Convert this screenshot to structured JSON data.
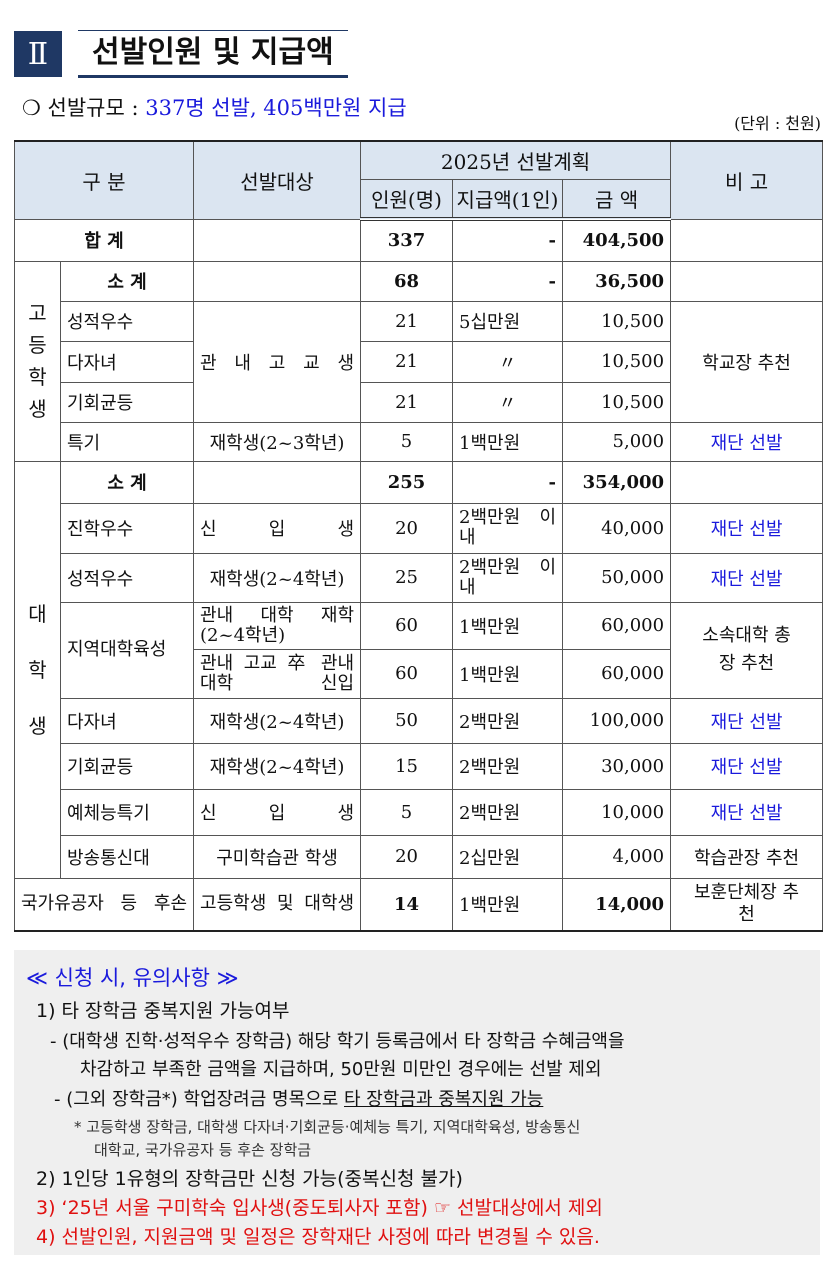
{
  "section": {
    "number": "Ⅱ",
    "title": "선발인원 및 지급액"
  },
  "scale": {
    "bullet": "❍",
    "label": "선발규모 :",
    "value": "337명 선발, 405백만원 지급"
  },
  "unit": "(단위 : 천원)",
  "table": {
    "headers": {
      "category": "구 분",
      "target": "선발대상",
      "plan": "2025년 선발계획",
      "count": "인원(명)",
      "per": "지급액(1인)",
      "amount": "금 액",
      "note": "비 고"
    },
    "total": {
      "label": "합 계",
      "count": "337",
      "per": "-",
      "amount": "404,500"
    },
    "high": {
      "group": "고등학생",
      "subtotal": {
        "label": "소 계",
        "count": "68",
        "per": "-",
        "amount": "36,500"
      },
      "target_shared": "관 내 고 교 생",
      "note_shared": "학교장 추천",
      "rows": [
        {
          "type": "성적우수",
          "count": "21",
          "per": "5십만원",
          "amount": "10,500"
        },
        {
          "type": "다자녀",
          "count": "21",
          "per": "〃",
          "amount": "10,500"
        },
        {
          "type": "기회균등",
          "count": "21",
          "per": "〃",
          "amount": "10,500"
        },
        {
          "type": "특기",
          "target": "재학생(2~3학년)",
          "count": "5",
          "per": "1백만원",
          "amount": "5,000",
          "note": "재단 선발"
        }
      ]
    },
    "univ": {
      "group": "대학생",
      "subtotal": {
        "label": "소 계",
        "count": "255",
        "per": "-",
        "amount": "354,000"
      },
      "rows": [
        {
          "type": "진학우수",
          "target": "신 입 생",
          "count": "20",
          "per": "2백만원 이 내",
          "amount": "40,000",
          "note": "재단 선발"
        },
        {
          "type": "성적우수",
          "target": "재학생(2~4학년)",
          "count": "25",
          "per": "2백만원 이 내",
          "amount": "50,000",
          "note": "재단 선발"
        },
        {
          "type": "지역대학육성",
          "target": "관내 대학 재학 (2~4학년)",
          "count": "60",
          "per": "1백만원",
          "amount": "60,000",
          "note": "소속대학 총장 추천"
        },
        {
          "target": "관내 고교 卒 관내 대학 신입",
          "count": "60",
          "per": "1백만원",
          "amount": "60,000"
        },
        {
          "type": "다자녀",
          "target": "재학생(2~4학년)",
          "count": "50",
          "per": "2백만원",
          "amount": "100,000",
          "note": "재단 선발"
        },
        {
          "type": "기회균등",
          "target": "재학생(2~4학년)",
          "count": "15",
          "per": "2백만원",
          "amount": "30,000",
          "note": "재단 선발"
        },
        {
          "type": "예체능특기",
          "target": "신 입 생",
          "count": "5",
          "per": "2백만원",
          "amount": "10,000",
          "note": "재단 선발"
        },
        {
          "type": "방송통신대",
          "target": "구미학습관 학생",
          "count": "20",
          "per": "2십만원",
          "amount": "4,000",
          "note": "학습관장 추천"
        }
      ]
    },
    "veteran": {
      "type": "국가유공자 등 후손",
      "target": "고등학생 및 대학생",
      "count": "14",
      "per": "1백만원",
      "amount": "14,000",
      "note": "보훈단체장 추천"
    }
  },
  "notes": {
    "title": "≪ 신청 시, 유의사항 ≫",
    "n1": "1) 타 장학금 중복지원 가능여부",
    "n1a_1": "- (대학생 진학·성적우수 장학금) 해당 학기 등록금에서 타 장학금 수혜금액을",
    "n1a_2": "차감하고 부족한 금액을 지급하며, 50만원 미만인 경우에는 선발 제외",
    "n1b_pre": "- (그외 장학금*) 학업장려금 명목으로 ",
    "n1b_u": "타 장학금과 중복지원 가능",
    "n1c_1": "* 고등학생 장학금, 대학생 다자녀·기회균등·예체능 특기, 지역대학육성, 방송통신",
    "n1c_2": "대학교, 국가유공자 등 후손 장학금",
    "n2": "2) 1인당 1유형의 장학금만 신청 가능(중복신청 불가)",
    "n3": "3) ‘25년 서울 구미학숙 입사생(중도퇴사자 포함) ☞ 선발대상에서 제외",
    "n4": "4) 선발인원, 지원금액 및 일정은 장학재단 사정에 따라 변경될 수 있음.",
    "colors": {
      "blue": "#1a1adc",
      "red": "#e01010"
    }
  }
}
